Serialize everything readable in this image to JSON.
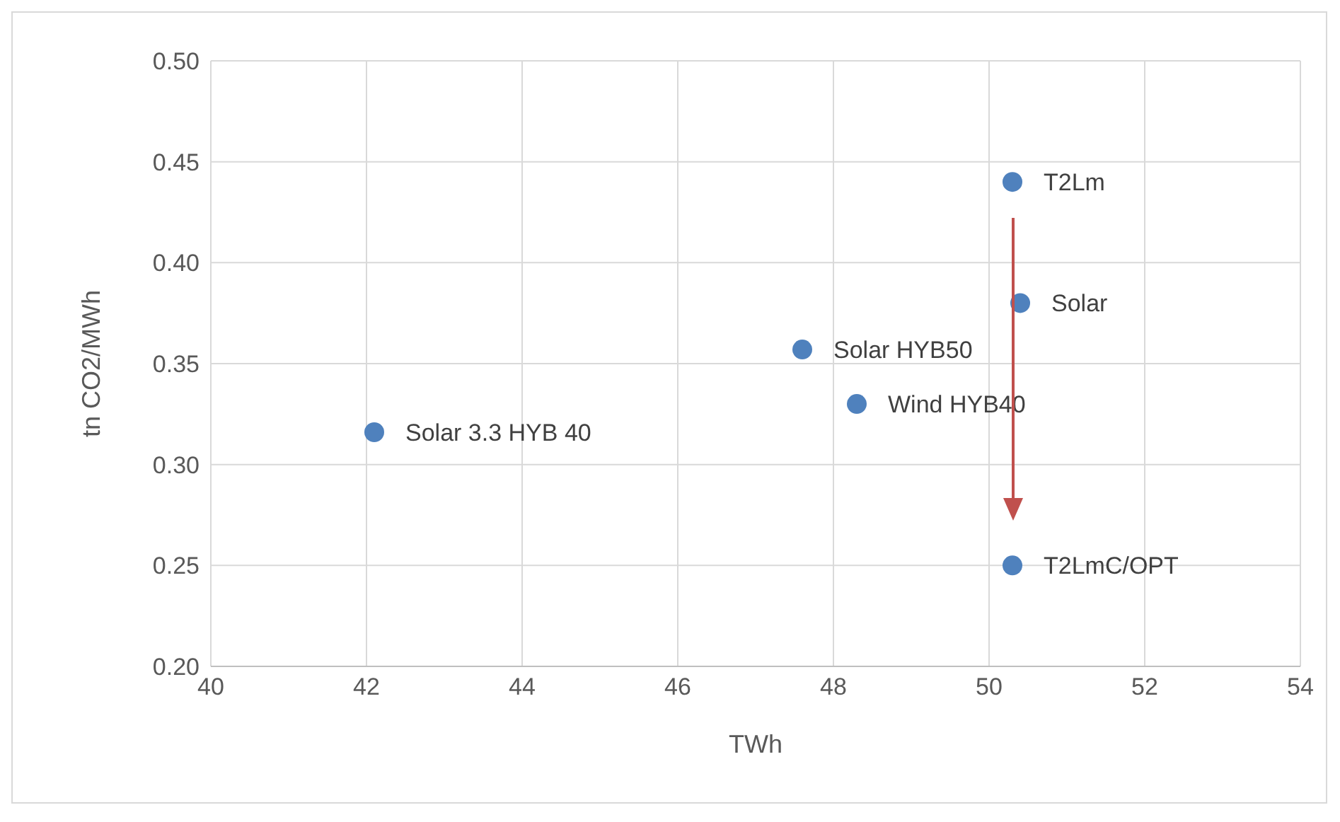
{
  "chart_data": {
    "type": "scatter",
    "xlabel": "TWh",
    "ylabel": "tn CO2/MWh",
    "x": [
      50.3,
      50.4,
      47.6,
      48.3,
      42.1,
      50.3
    ],
    "series": [
      {
        "color": "#4f81bd",
        "values": [
          0.44,
          0.38,
          0.357,
          0.33,
          0.316,
          0.25
        ]
      }
    ],
    "xlim": [
      40,
      54
    ],
    "xticks": [
      40,
      42,
      44,
      46,
      48,
      50,
      52,
      54
    ],
    "ylim": [
      0.2,
      0.5
    ],
    "yticks": [
      {
        "value": 0.2,
        "label": "0.20"
      },
      {
        "value": 0.25,
        "label": "0.25"
      },
      {
        "value": 0.3,
        "label": "0.30"
      },
      {
        "value": 0.35,
        "label": "0.35"
      },
      {
        "value": 0.4,
        "label": "0.40"
      },
      {
        "value": 0.45,
        "label": "0.45"
      },
      {
        "value": 0.5,
        "label": "0.50"
      }
    ],
    "annotations": [
      {
        "text": "T2Lm",
        "x": 50.3,
        "y": 0.44
      },
      {
        "text": "Solar",
        "x": 50.4,
        "y": 0.38
      },
      {
        "text": "Solar HYB50",
        "x": 47.6,
        "y": 0.357
      },
      {
        "text": "Wind HYB40",
        "x": 48.3,
        "y": 0.33
      },
      {
        "text": "Solar 3.3 HYB 40",
        "x": 42.1,
        "y": 0.316
      },
      {
        "text": "T2LmC/OPT",
        "x": 50.3,
        "y": 0.25
      }
    ],
    "grid": true,
    "legend": false,
    "marker": "circle"
  }
}
